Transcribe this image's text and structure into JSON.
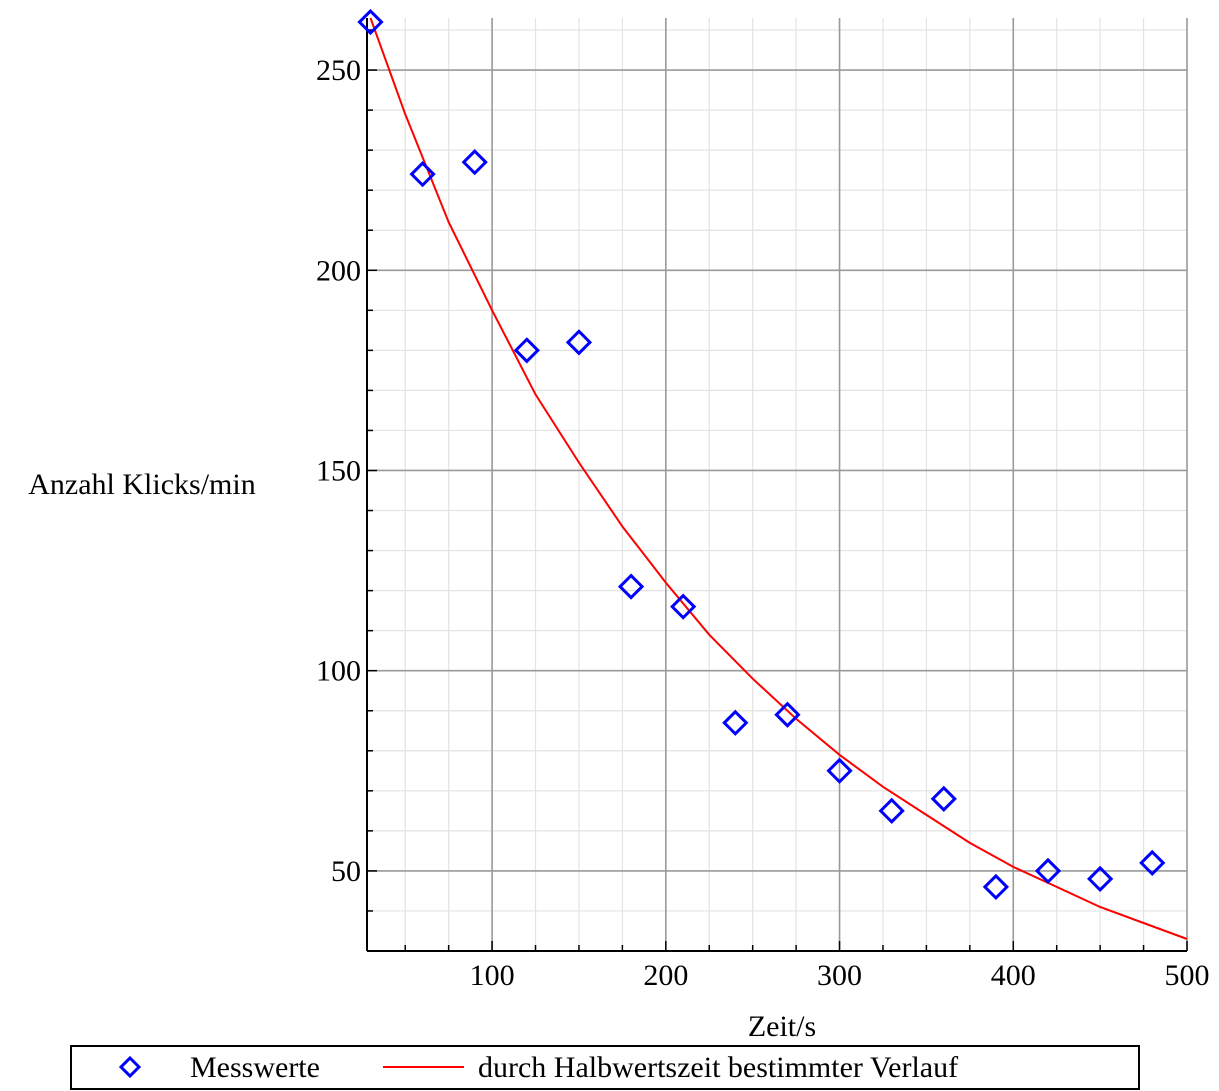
{
  "chart_data": {
    "type": "scatter",
    "title": "",
    "xlabel": "Zeit/s",
    "ylabel": "Anzahl Klicks/min",
    "xlim": [
      28,
      500
    ],
    "ylim": [
      30,
      263
    ],
    "x_ticks": [
      100,
      200,
      300,
      400,
      500
    ],
    "y_ticks": [
      50,
      100,
      150,
      200,
      250
    ],
    "x_minor_step": 25,
    "y_minor_step": 10,
    "grid": true,
    "legend_position": "bottom",
    "series": [
      {
        "name": "Messwerte",
        "type": "scatter",
        "marker": "diamond",
        "color": "#0000ff",
        "x": [
          30,
          60,
          90,
          120,
          150,
          180,
          210,
          240,
          270,
          300,
          330,
          360,
          390,
          420,
          450,
          480
        ],
        "y": [
          262,
          224,
          227,
          180,
          182,
          121,
          116,
          87,
          89,
          75,
          65,
          68,
          46,
          50,
          48,
          52
        ]
      },
      {
        "name": "durch Halbwertszeit bestimmter Verlauf",
        "type": "line",
        "color": "#ff0000",
        "x": [
          30,
          50,
          75,
          100,
          125,
          150,
          175,
          200,
          225,
          250,
          275,
          300,
          325,
          350,
          375,
          400,
          425,
          450,
          475,
          500
        ],
        "y": [
          263,
          239,
          212,
          190,
          169,
          152,
          136,
          122,
          109,
          98,
          88,
          79,
          71,
          64,
          57,
          51,
          46,
          41,
          37,
          33
        ]
      }
    ]
  }
}
